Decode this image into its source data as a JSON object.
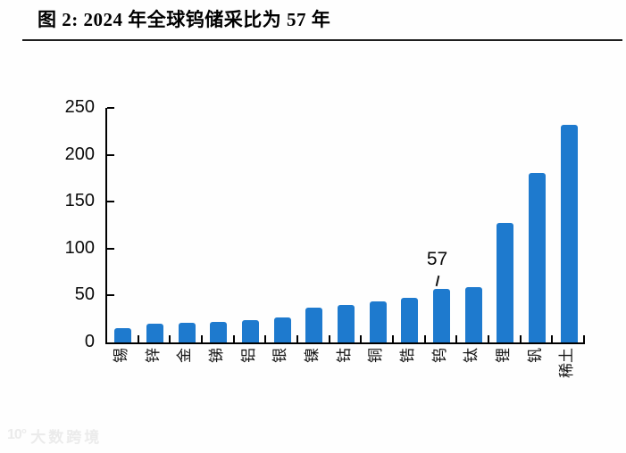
{
  "title": "图 2: 2024 年全球钨储采比为 57 年",
  "chart_data": {
    "type": "bar",
    "title": "图 2: 2024 年全球钨储采比为 57 年",
    "categories": [
      "锡",
      "锌",
      "金",
      "锑",
      "铝",
      "银",
      "镍",
      "钴",
      "铜",
      "锆",
      "钨",
      "钛",
      "锂",
      "钒",
      "稀土"
    ],
    "values": [
      15,
      20,
      21,
      22,
      24,
      27,
      37,
      40,
      44,
      48,
      57,
      59,
      127,
      181,
      232
    ],
    "unit": "年",
    "xlabel": "",
    "ylabel": "",
    "ylim": [
      0,
      250
    ],
    "yticks": [
      0,
      50,
      100,
      150,
      200,
      250
    ],
    "grid": false,
    "legend": "none",
    "bar_color": "#1e7ace",
    "annotation": {
      "text": "57",
      "category": "钨",
      "value": 57
    }
  },
  "watermark": {
    "logo": "10°",
    "text": "大数跨境"
  }
}
